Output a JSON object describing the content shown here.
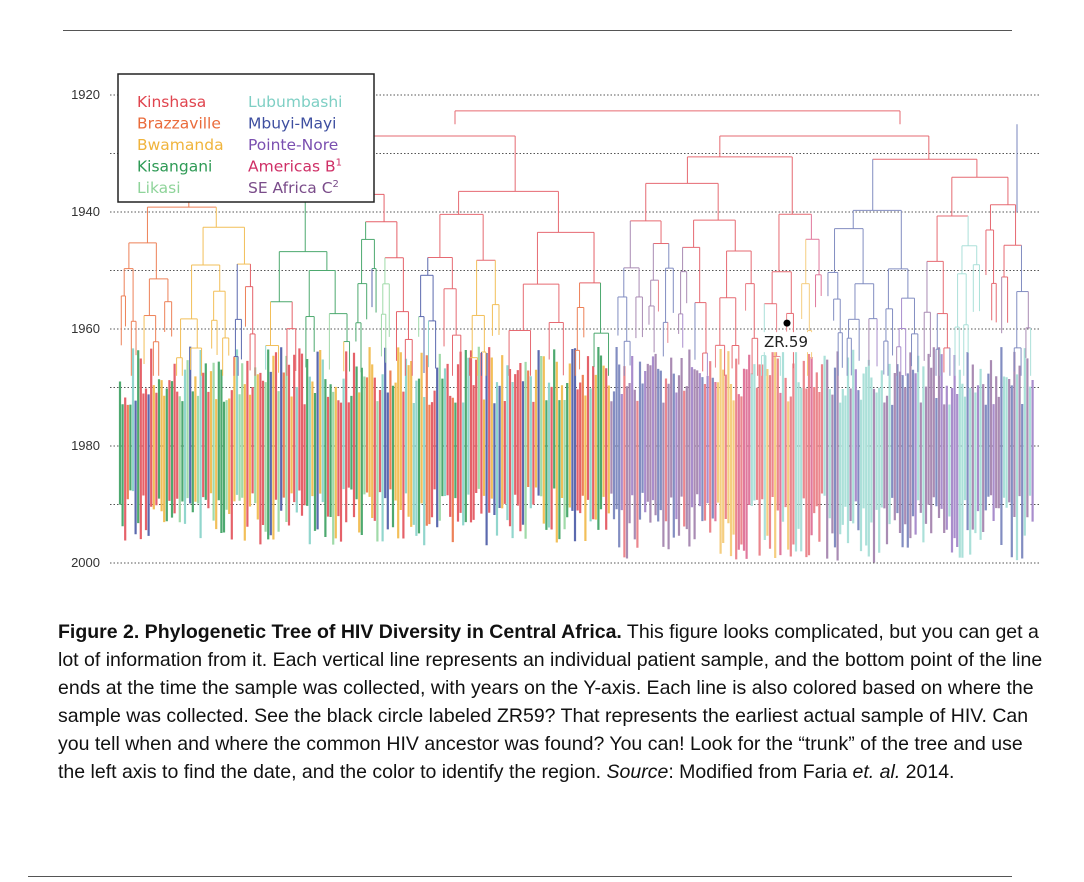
{
  "figure": {
    "y_axis": {
      "ticks": [
        "1920",
        "1940",
        "1960",
        "1980",
        "2000"
      ],
      "range": [
        1920,
        2000
      ]
    },
    "legend": [
      {
        "label": "Kinshasa",
        "color": "#e0454f"
      },
      {
        "label": "Brazzaville",
        "color": "#ea6b3b"
      },
      {
        "label": "Bwamanda",
        "color": "#f0b43c"
      },
      {
        "label": "Kisangani",
        "color": "#2e9a55"
      },
      {
        "label": "Likasi",
        "color": "#8fd49a"
      },
      {
        "label": "Lubumbashi",
        "color": "#7ecfc4"
      },
      {
        "label": "Mbuyi-Mayi",
        "color": "#3e4fa0"
      },
      {
        "label": "Pointe-Nore",
        "color": "#7a4fb0"
      },
      {
        "label": "Americas B",
        "sup": "1",
        "color": "#cf2f66"
      },
      {
        "label": "SE Africa C",
        "sup": "2",
        "color": "#7a4c8a"
      }
    ],
    "marker": {
      "label": "ZR.59",
      "year": 1959
    },
    "root_year": 1921,
    "tips_end": "2000"
  },
  "caption": {
    "title": "Figure 2. Phylogenetic Tree of HIV Diversity in Central Africa.",
    "body1": " This figure looks complicated, but you can get a lot of information from it. Each vertical line represents an individual patient sample, and the bottom point of the line ends at the time the sample was collected, with years on the Y-axis. Each line is also colored based on where the sample was collected. See the black circle labeled ZR59? That represents the earliest actual sample of HIV. Can you tell when and where the common HIV ancestor was found? You can! Look for the “trunk” of the tree and use the left axis to find the date, and the color to identify the region. ",
    "source_label": "Source",
    "body2": ": Modified from Faria ",
    "etal": "et. al.",
    "year": " 2014."
  }
}
